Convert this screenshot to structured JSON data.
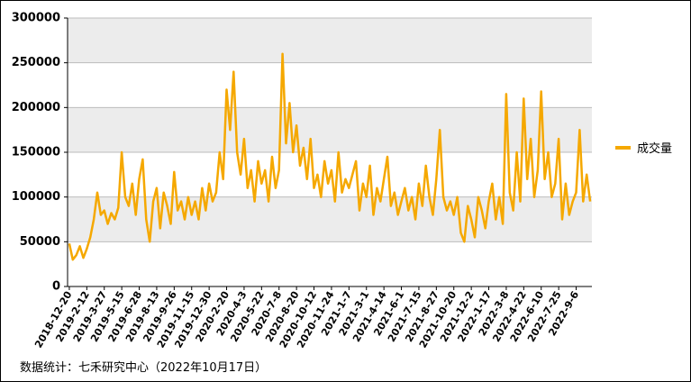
{
  "chart_data": {
    "type": "line",
    "categories": [
      "2018-12-20",
      null,
      null,
      null,
      null,
      "2019-2-12",
      null,
      null,
      null,
      null,
      "2019-3-27",
      null,
      null,
      null,
      null,
      "2019-5-15",
      null,
      null,
      null,
      null,
      "2019-6-28",
      null,
      null,
      null,
      null,
      "2019-8-13",
      null,
      null,
      null,
      null,
      "2019-9-26",
      null,
      null,
      null,
      null,
      "2019-11-15",
      null,
      null,
      null,
      null,
      "2019-12-30",
      null,
      null,
      null,
      null,
      "2020-2-20",
      null,
      null,
      null,
      null,
      "2020-4-3",
      null,
      null,
      null,
      null,
      "2020-5-22",
      null,
      null,
      null,
      null,
      "2020-7-8",
      null,
      null,
      null,
      null,
      "2020-8-20",
      null,
      null,
      null,
      null,
      "2020-10-12",
      null,
      null,
      null,
      null,
      "2020-11-24",
      null,
      null,
      null,
      null,
      "2021-1-7",
      null,
      null,
      null,
      null,
      "2021-3-1",
      null,
      null,
      null,
      null,
      "2021-4-14",
      null,
      null,
      null,
      null,
      "2021-6-1",
      null,
      null,
      null,
      null,
      "2021-7-15",
      null,
      null,
      null,
      null,
      "2021-8-27",
      null,
      null,
      null,
      null,
      "2021-10-20",
      null,
      null,
      null,
      null,
      "2021-12-2",
      null,
      null,
      null,
      null,
      "2022-1-17",
      null,
      null,
      null,
      null,
      "2022-3-8",
      null,
      null,
      null,
      null,
      "2022-4-22",
      null,
      null,
      null,
      null,
      "2022-6-10",
      null,
      null,
      null,
      null,
      "2022-7-25",
      null,
      null,
      null,
      null,
      "2022-9-6",
      null,
      null,
      null,
      null
    ],
    "series": [
      {
        "name": "成交量",
        "color": "#f5a800",
        "values": [
          48000,
          30000,
          35000,
          45000,
          32000,
          42000,
          55000,
          75000,
          105000,
          80000,
          85000,
          70000,
          82000,
          75000,
          88000,
          150000,
          100000,
          90000,
          115000,
          80000,
          120000,
          142000,
          75000,
          50000,
          95000,
          110000,
          65000,
          105000,
          90000,
          70000,
          128000,
          85000,
          95000,
          75000,
          100000,
          80000,
          95000,
          75000,
          110000,
          85000,
          115000,
          95000,
          105000,
          150000,
          120000,
          220000,
          175000,
          240000,
          150000,
          125000,
          165000,
          110000,
          130000,
          95000,
          140000,
          115000,
          130000,
          95000,
          145000,
          110000,
          130000,
          260000,
          160000,
          205000,
          150000,
          180000,
          135000,
          155000,
          120000,
          165000,
          110000,
          125000,
          100000,
          140000,
          115000,
          130000,
          95000,
          150000,
          105000,
          120000,
          110000,
          125000,
          140000,
          85000,
          115000,
          100000,
          135000,
          80000,
          110000,
          95000,
          120000,
          145000,
          90000,
          105000,
          80000,
          95000,
          110000,
          85000,
          100000,
          75000,
          115000,
          90000,
          135000,
          100000,
          80000,
          120000,
          175000,
          100000,
          85000,
          95000,
          80000,
          100000,
          60000,
          50000,
          90000,
          75000,
          55000,
          100000,
          85000,
          65000,
          95000,
          115000,
          75000,
          100000,
          70000,
          215000,
          105000,
          85000,
          150000,
          95000,
          210000,
          120000,
          165000,
          100000,
          130000,
          218000,
          120000,
          150000,
          100000,
          115000,
          165000,
          75000,
          115000,
          80000,
          95000,
          105000,
          175000,
          95000,
          125000,
          95000
        ]
      }
    ],
    "ylim": [
      0,
      300000
    ],
    "yticks": [
      0,
      50000,
      100000,
      150000,
      200000,
      250000,
      300000
    ],
    "grid": true,
    "legend": "right",
    "source": "数据统计：七禾研究中心（2022年10月17日）"
  }
}
